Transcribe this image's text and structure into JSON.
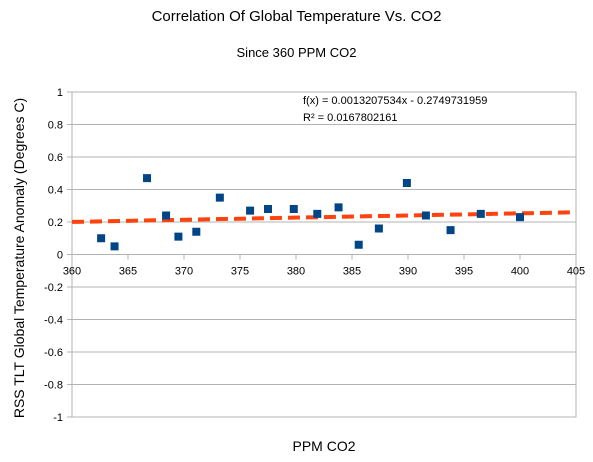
{
  "chart_data": {
    "type": "scatter",
    "title": "Correlation Of Global Temperature Vs. CO2",
    "subtitle": "Since 360 PPM CO2",
    "xlabel": "PPM CO2",
    "ylabel": "RSS TLT Global Temperature Anomaly (Degrees C)",
    "xlim": [
      360,
      405
    ],
    "ylim": [
      -1,
      1
    ],
    "x_ticks": [
      "360",
      "365",
      "370",
      "375",
      "380",
      "385",
      "390",
      "395",
      "400",
      "405"
    ],
    "y_ticks": [
      "1",
      "0.8",
      "0.6",
      "0.4",
      "0.2",
      "0",
      "-0.2",
      "-0.4",
      "-0.6",
      "-0.8",
      "-1"
    ],
    "grid": true,
    "series": [
      {
        "color": "#004586",
        "marker": "square",
        "x": [
          362.6,
          363.8,
          366.7,
          368.4,
          369.5,
          371.1,
          373.2,
          375.9,
          377.5,
          379.8,
          381.9,
          383.8,
          385.6,
          387.4,
          389.9,
          391.6,
          393.8,
          396.5,
          400.0
        ],
        "y": [
          0.1,
          0.05,
          0.47,
          0.24,
          0.11,
          0.14,
          0.35,
          0.27,
          0.28,
          0.28,
          0.25,
          0.29,
          0.06,
          0.16,
          0.44,
          0.24,
          0.15,
          0.25,
          0.23
        ]
      }
    ],
    "trendline": {
      "type": "linear",
      "slope": 0.0013207534,
      "intercept": -0.2749731959,
      "color": "#ff420e",
      "style": "dashed"
    },
    "annotations": [
      "f(x) = 0.0013207534x - 0.2749731959",
      "R² = 0.0167802161"
    ]
  }
}
